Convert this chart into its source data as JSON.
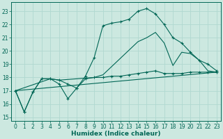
{
  "xlabel": "Humidex (Indice chaleur)",
  "background_color": "#cce8e0",
  "grid_color": "#b0d8d0",
  "line_color": "#006655",
  "xlim": [
    -0.5,
    23.5
  ],
  "ylim": [
    14.7,
    23.7
  ],
  "yticks": [
    15,
    16,
    17,
    18,
    19,
    20,
    21,
    22,
    23
  ],
  "xticks": [
    0,
    1,
    2,
    3,
    4,
    5,
    6,
    7,
    8,
    9,
    10,
    11,
    12,
    13,
    14,
    15,
    16,
    17,
    18,
    19,
    20,
    21,
    22,
    23
  ],
  "line1_x": [
    0,
    1,
    2,
    3,
    4,
    5,
    6,
    7,
    8,
    9,
    10,
    11,
    12,
    13,
    14,
    15,
    16,
    17,
    18,
    19,
    20,
    21,
    22,
    23
  ],
  "line1_y": [
    17.0,
    15.4,
    16.9,
    17.9,
    17.9,
    17.8,
    17.5,
    17.2,
    17.9,
    18.0,
    18.0,
    18.1,
    18.1,
    18.2,
    18.3,
    18.4,
    18.5,
    18.3,
    18.3,
    18.3,
    18.4,
    18.4,
    18.4,
    18.4
  ],
  "line2_x": [
    0,
    1,
    2,
    3,
    4,
    5,
    6,
    7,
    8,
    9,
    10,
    11,
    12,
    13,
    14,
    15,
    16,
    17,
    18,
    19,
    20,
    21,
    22,
    23
  ],
  "line2_y": [
    17.0,
    15.4,
    16.9,
    17.9,
    17.9,
    17.5,
    16.4,
    17.2,
    18.1,
    19.5,
    21.9,
    22.1,
    22.2,
    22.4,
    23.0,
    23.2,
    22.8,
    22.0,
    21.0,
    20.6,
    19.9,
    19.3,
    19.0,
    18.5
  ],
  "line3_x": [
    0,
    4,
    5,
    9,
    10,
    14,
    15,
    16,
    17,
    18,
    19,
    20,
    21,
    22,
    23
  ],
  "line3_y": [
    17.0,
    17.9,
    17.8,
    18.0,
    18.2,
    20.7,
    21.0,
    21.4,
    20.6,
    18.9,
    19.9,
    19.8,
    19.3,
    18.5,
    18.4
  ],
  "line4_x": [
    0,
    23
  ],
  "line4_y": [
    17.0,
    18.4
  ]
}
